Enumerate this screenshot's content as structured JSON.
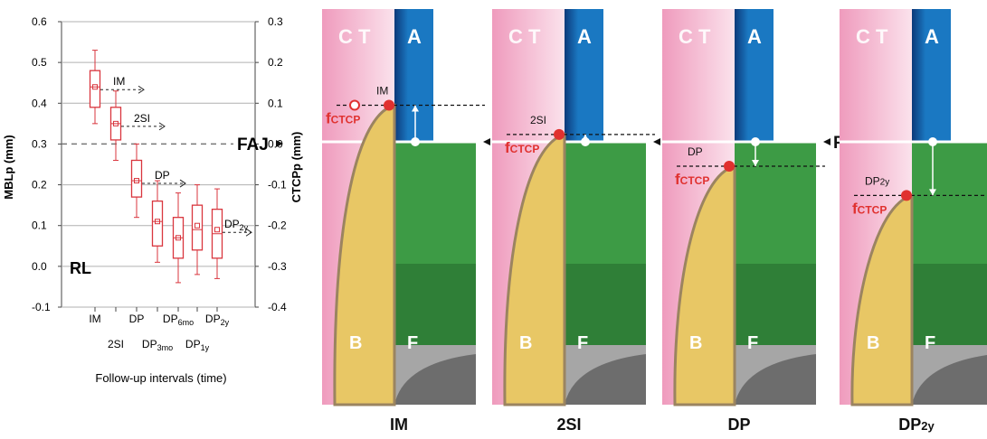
{
  "chart": {
    "left_axis_label": "MBLp (mm)",
    "right_axis_label": "CTCPp (mm)",
    "xlabel": "Follow-up intervals (time)",
    "left_ticks": [
      "0.6",
      "0.5",
      "0.4",
      "0.3",
      "0.2",
      "0.1",
      "0.0",
      "-0.1"
    ],
    "right_ticks": [
      "0.3",
      "0.2",
      "0.1",
      "0.0",
      "-0.1",
      "-0.2",
      "-0.3",
      "-0.4"
    ],
    "x_labels_top": [
      "IM",
      "DP",
      "DP6mo",
      "DP2y"
    ],
    "x_labels_bottom": [
      "2SI",
      "DP3mo",
      "DP1y"
    ],
    "reference_label": "FAJ",
    "baseline_label": "RL",
    "arrow_labels": [
      "IM",
      "2SI",
      "DP",
      "DP2y"
    ]
  },
  "chart_data": {
    "type": "box",
    "categories": [
      "IM",
      "2SI",
      "DP",
      "DP3mo",
      "DP6mo",
      "DP1y",
      "DP2y"
    ],
    "boxes": [
      {
        "name": "IM",
        "whisker_low": 0.35,
        "q1": 0.39,
        "median": 0.44,
        "mean": 0.44,
        "q3": 0.48,
        "whisker_high": 0.53
      },
      {
        "name": "2SI",
        "whisker_low": 0.26,
        "q1": 0.31,
        "median": 0.35,
        "mean": 0.35,
        "q3": 0.39,
        "whisker_high": 0.43
      },
      {
        "name": "DP",
        "whisker_low": 0.12,
        "q1": 0.17,
        "median": 0.21,
        "mean": 0.21,
        "q3": 0.26,
        "whisker_high": 0.3
      },
      {
        "name": "DP3mo",
        "whisker_low": 0.01,
        "q1": 0.05,
        "median": 0.11,
        "mean": 0.11,
        "q3": 0.16,
        "whisker_high": 0.21
      },
      {
        "name": "DP6mo",
        "whisker_low": -0.04,
        "q1": 0.02,
        "median": 0.07,
        "mean": 0.07,
        "q3": 0.12,
        "whisker_high": 0.18
      },
      {
        "name": "DP1y",
        "whisker_low": -0.02,
        "q1": 0.04,
        "median": 0.09,
        "mean": 0.1,
        "q3": 0.15,
        "whisker_high": 0.2
      },
      {
        "name": "DP2y",
        "whisker_low": -0.03,
        "q1": 0.02,
        "median": 0.08,
        "mean": 0.09,
        "q3": 0.14,
        "whisker_high": 0.19
      }
    ],
    "ylim_left": [
      -0.1,
      0.6
    ],
    "ylim_right": [
      -0.4,
      0.3
    ],
    "xlabel": "Follow-up intervals (time)",
    "ylabel_left": "MBLp (mm)",
    "ylabel_right": "CTCPp (mm)",
    "reference_line": {
      "left_value": 0.3,
      "right_value": 0.0,
      "label": "FAJ"
    },
    "box_color": "#d9363e",
    "grid": true
  },
  "panels": [
    {
      "title": "IM",
      "ctcp_level": 0.15,
      "ctcp_label": "IM"
    },
    {
      "title": "2SI",
      "ctcp_level": 0.03,
      "ctcp_label": "2SI"
    },
    {
      "title": "DP",
      "ctcp_level": -0.1,
      "ctcp_label": "DP"
    },
    {
      "title": "DP2y",
      "ctcp_level": -0.22,
      "ctcp_label": "DP2y"
    }
  ],
  "panel_text": {
    "ct": "C T",
    "a": "A",
    "b": "B",
    "f": "F",
    "faj": "FAJ",
    "fctcp_f": "f",
    "fctcp_sub": "CTCP"
  },
  "colors": {
    "soft_tissue": "#f2a8c4",
    "abutment": "#1a78c2",
    "bone": "#e8c765",
    "fixture": "#3d9b45",
    "fixture_dark": "#2f7f37",
    "gray": "#a0a0a0",
    "marker_red": "#e0312f",
    "white": "#ffffff"
  }
}
